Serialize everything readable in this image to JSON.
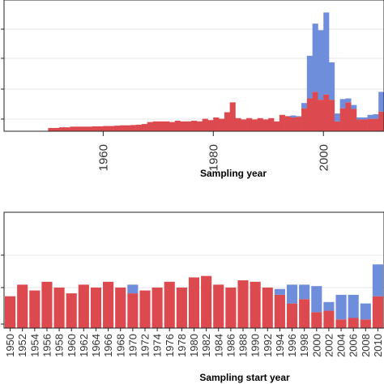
{
  "colors": {
    "primary": "#dc4a4f",
    "secondary": "#6e8ddb"
  },
  "chart_data": [
    {
      "type": "bar",
      "stacked": true,
      "xlabel": "Sampling year",
      "xticks": [
        "1960",
        "1980",
        "2000"
      ],
      "x": [
        1950,
        1951,
        1952,
        1953,
        1954,
        1955,
        1956,
        1957,
        1958,
        1959,
        1960,
        1961,
        1962,
        1963,
        1964,
        1965,
        1966,
        1967,
        1968,
        1969,
        1970,
        1971,
        1972,
        1973,
        1974,
        1975,
        1976,
        1977,
        1978,
        1979,
        1980,
        1981,
        1982,
        1983,
        1984,
        1985,
        1986,
        1987,
        1988,
        1989,
        1990,
        1991,
        1992,
        1993,
        1994,
        1995,
        1996,
        1997,
        1998,
        1999,
        2000,
        2001,
        2002,
        2003,
        2004,
        2005,
        2006,
        2007,
        2008,
        2009,
        2010,
        2011
      ],
      "series": [
        {
          "values": [
            0.1,
            0.1,
            0.12,
            0.12,
            0.14,
            0.14,
            0.14,
            0.14,
            0.15,
            0.15,
            0.16,
            0.16,
            0.17,
            0.18,
            0.18,
            0.19,
            0.2,
            0.22,
            0.28,
            0.3,
            0.3,
            0.3,
            0.28,
            0.32,
            0.3,
            0.3,
            0.32,
            0.3,
            0.38,
            0.34,
            0.42,
            0.38,
            0.58,
            0.88,
            0.4,
            0.36,
            0.4,
            0.36,
            0.4,
            0.36,
            0.4,
            0.3,
            0.5,
            0.46,
            0.42,
            0.44,
            0.7,
            1.0,
            1.2,
            0.96,
            1.12,
            0.96,
            0.3,
            0.7,
            0.88,
            0.68,
            0.36,
            0.36,
            0.38,
            0.38,
            0.6,
            0.2
          ]
        },
        {
          "values": [
            0,
            0,
            0,
            0,
            0,
            0,
            0,
            0,
            0,
            0,
            0,
            0,
            0,
            0,
            0,
            0,
            0,
            0,
            0,
            0,
            0,
            0,
            0,
            0,
            0,
            0,
            0,
            0,
            0,
            0,
            0,
            0,
            0,
            0,
            0,
            0,
            0,
            0,
            0,
            0,
            0,
            0,
            0,
            0,
            0.06,
            0.02,
            0.16,
            1.3,
            2.08,
            2.12,
            2.5,
            1.14,
            0.24,
            0.28,
            0.12,
            0.12,
            0.06,
            0.06,
            0.12,
            0.14,
            0.6,
            0.1
          ]
        }
      ],
      "ylim": [
        0,
        4
      ]
    },
    {
      "type": "bar",
      "stacked": true,
      "xlabel": "Sampling start year",
      "xticks": [
        "1950",
        "1952",
        "1954",
        "1956",
        "1958",
        "1960",
        "1962",
        "1964",
        "1966",
        "1968",
        "1970",
        "1972",
        "1974",
        "1976",
        "1978",
        "1980",
        "1982",
        "1984",
        "1986",
        "1988",
        "1990",
        "1992",
        "1994",
        "1996",
        "1998",
        "2000",
        "2002",
        "2004",
        "2006",
        "2008",
        "2010"
      ],
      "x": [
        1950,
        1952,
        1954,
        1956,
        1958,
        1960,
        1962,
        1964,
        1966,
        1968,
        1970,
        1972,
        1974,
        1976,
        1978,
        1980,
        1982,
        1984,
        1986,
        1988,
        1990,
        1992,
        1994,
        1996,
        1998,
        2000,
        2002,
        2004,
        2006,
        2008,
        2010
      ],
      "series": [
        {
          "values": [
            0.44,
            0.6,
            0.52,
            0.64,
            0.56,
            0.48,
            0.6,
            0.56,
            0.64,
            0.56,
            0.48,
            0.52,
            0.56,
            0.64,
            0.56,
            0.7,
            0.72,
            0.6,
            0.56,
            0.66,
            0.64,
            0.56,
            0.46,
            0.34,
            0.4,
            0.22,
            0.24,
            0.12,
            0.14,
            0.12,
            0.44
          ]
        },
        {
          "values": [
            0,
            0,
            0,
            0,
            0,
            0,
            0,
            0,
            0,
            0,
            0.12,
            0,
            0,
            0,
            0,
            0,
            0,
            0,
            0,
            0,
            0,
            0,
            0.08,
            0.26,
            0.2,
            0.36,
            0.12,
            0.34,
            0.32,
            0.22,
            0.44
          ]
        }
      ],
      "ylim": [
        0,
        1.6
      ]
    }
  ]
}
